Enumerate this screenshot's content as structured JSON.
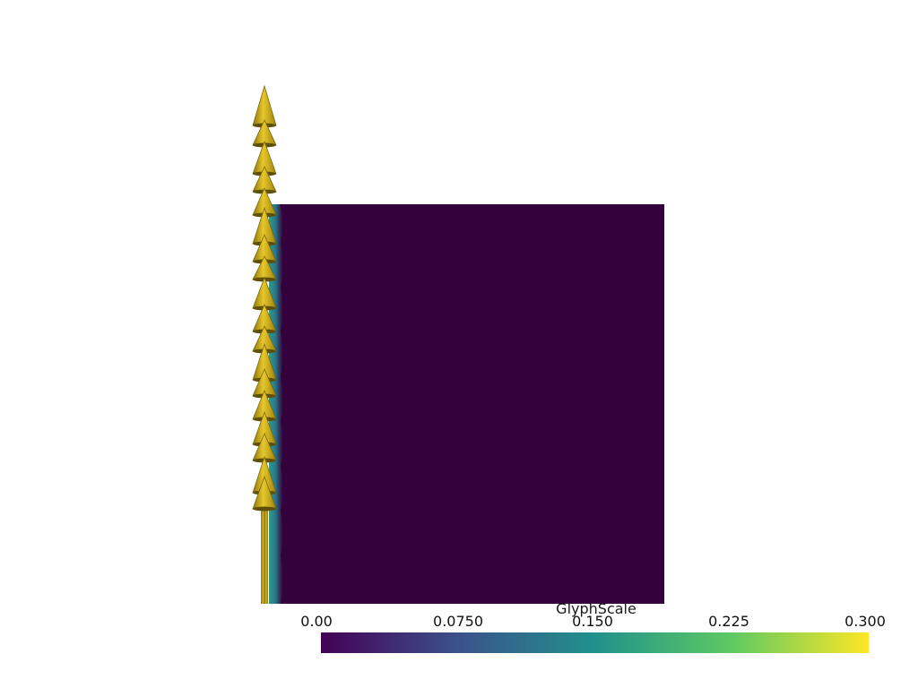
{
  "scalar_bar": {
    "title": "GlyphScale",
    "ticks": [
      "0.00",
      "0.0750",
      "0.150",
      "0.225",
      "0.300"
    ],
    "range": [
      0.0,
      0.3
    ],
    "colormap": "viridis",
    "colors": [
      "#440154",
      "#3b528b",
      "#21918c",
      "#5ec962",
      "#fde725"
    ]
  },
  "scene": {
    "background": "#ffffff",
    "plane_color": "#35013d",
    "glyph_color": "#d7b81a",
    "glyph_count": 17
  }
}
